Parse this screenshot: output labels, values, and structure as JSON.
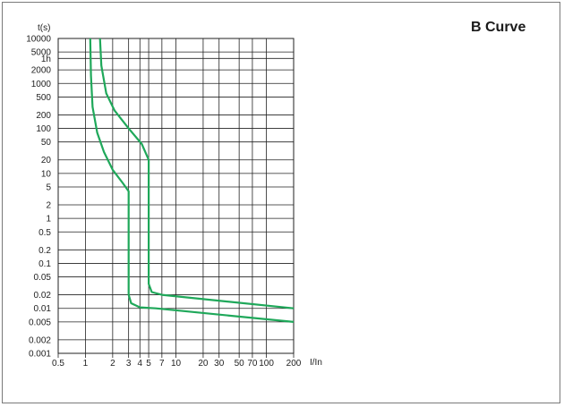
{
  "chart_data": {
    "type": "line",
    "title": "B Curve",
    "xlabel": "I/In",
    "ylabel": "t(s)",
    "x_scale": "log",
    "y_scale": "log",
    "xlim": [
      0.5,
      200
    ],
    "ylim": [
      0.001,
      10000
    ],
    "grid": true,
    "x_ticks": [
      {
        "value": 0.5,
        "label": "0.5"
      },
      {
        "value": 1,
        "label": "1"
      },
      {
        "value": 2,
        "label": "2"
      },
      {
        "value": 3,
        "label": "3"
      },
      {
        "value": 4,
        "label": "4"
      },
      {
        "value": 5,
        "label": "5"
      },
      {
        "value": 7,
        "label": "7"
      },
      {
        "value": 10,
        "label": "10"
      },
      {
        "value": 20,
        "label": "20"
      },
      {
        "value": 30,
        "label": "30"
      },
      {
        "value": 50,
        "label": "50"
      },
      {
        "value": 70,
        "label": "70"
      },
      {
        "value": 100,
        "label": "100"
      },
      {
        "value": 200,
        "label": "200"
      }
    ],
    "y_ticks": [
      {
        "value": 10000,
        "label": "10000"
      },
      {
        "value": 5000,
        "label": "5000"
      },
      {
        "value": 3600,
        "label": "1h"
      },
      {
        "value": 2000,
        "label": "2000"
      },
      {
        "value": 1000,
        "label": "1000"
      },
      {
        "value": 500,
        "label": "500"
      },
      {
        "value": 200,
        "label": "200"
      },
      {
        "value": 100,
        "label": "100"
      },
      {
        "value": 50,
        "label": "50"
      },
      {
        "value": 20,
        "label": "20"
      },
      {
        "value": 10,
        "label": "10"
      },
      {
        "value": 5,
        "label": "5"
      },
      {
        "value": 2,
        "label": "2"
      },
      {
        "value": 1,
        "label": "1"
      },
      {
        "value": 0.5,
        "label": "0.5"
      },
      {
        "value": 0.2,
        "label": "0.2"
      },
      {
        "value": 0.1,
        "label": "0.1"
      },
      {
        "value": 0.05,
        "label": "0.05"
      },
      {
        "value": 0.02,
        "label": "0.02"
      },
      {
        "value": 0.01,
        "label": "0.01"
      },
      {
        "value": 0.005,
        "label": "0.005"
      },
      {
        "value": 0.002,
        "label": "0.002"
      },
      {
        "value": 0.001,
        "label": "0.001"
      }
    ],
    "line_color": "#1fa85a",
    "series": [
      {
        "points": [
          [
            1.13,
            10000
          ],
          [
            1.15,
            1500
          ],
          [
            1.2,
            300
          ],
          [
            1.35,
            80
          ],
          [
            1.6,
            30
          ],
          [
            2,
            12
          ],
          [
            2.6,
            6
          ],
          [
            3,
            4
          ],
          [
            3,
            0.02
          ],
          [
            3.2,
            0.013
          ],
          [
            4,
            0.0105
          ],
          [
            6,
            0.01
          ],
          [
            200,
            0.005
          ]
        ]
      },
      {
        "points": [
          [
            1.45,
            10000
          ],
          [
            1.5,
            2500
          ],
          [
            1.7,
            600
          ],
          [
            2.1,
            250
          ],
          [
            3,
            100
          ],
          [
            4.2,
            45
          ],
          [
            5,
            20
          ],
          [
            5,
            0.035
          ],
          [
            5.4,
            0.023
          ],
          [
            7,
            0.02
          ],
          [
            200,
            0.01
          ]
        ]
      }
    ]
  }
}
